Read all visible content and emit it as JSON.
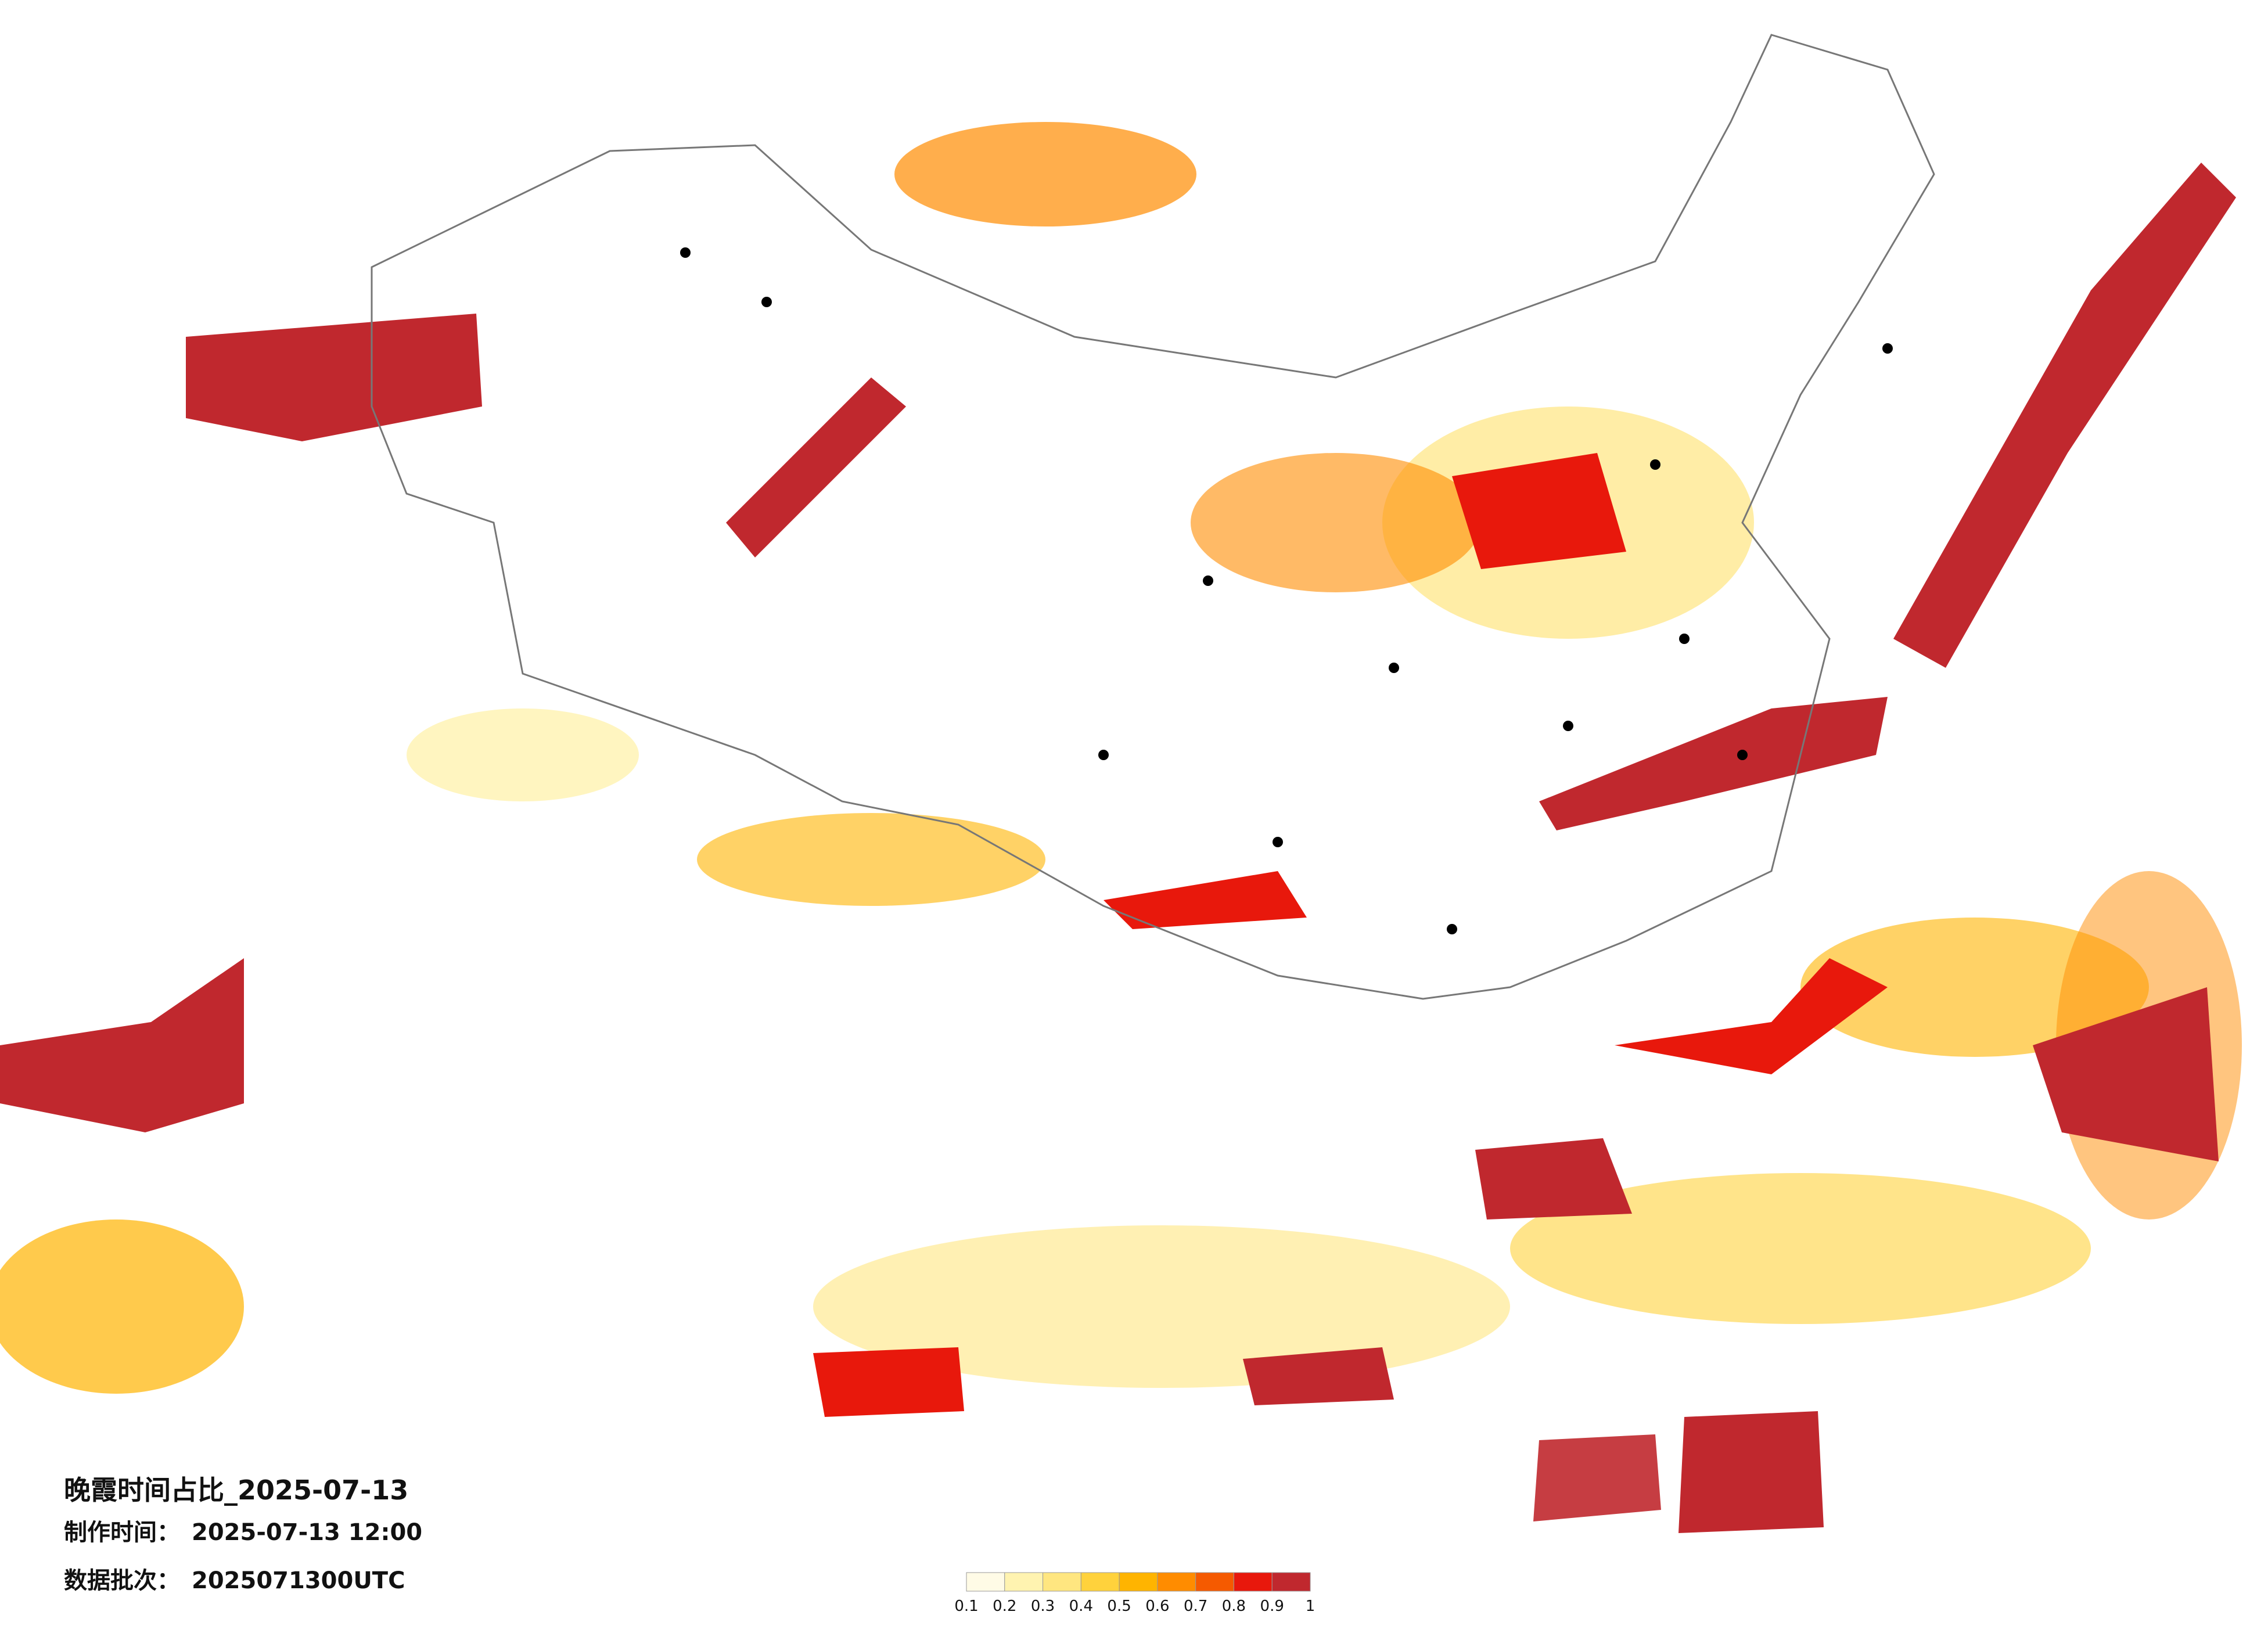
{
  "title": "晚霞时间占比_2025-07-13",
  "made_time": {
    "label": "制作时间：",
    "value": "2025-07-13 12:00"
  },
  "batch": {
    "label": "数据批次：",
    "value": "2025071300UTC"
  },
  "legend": {
    "ticks": [
      0.1,
      0.2,
      0.3,
      0.4,
      0.5,
      0.6,
      0.7,
      0.8,
      0.9,
      1
    ],
    "colors": [
      "#fffbe6",
      "#fff3b0",
      "#ffe680",
      "#ffd23c",
      "#ffb400",
      "#ff8c00",
      "#f55a00",
      "#e8180c",
      "#c0282e"
    ]
  }
}
